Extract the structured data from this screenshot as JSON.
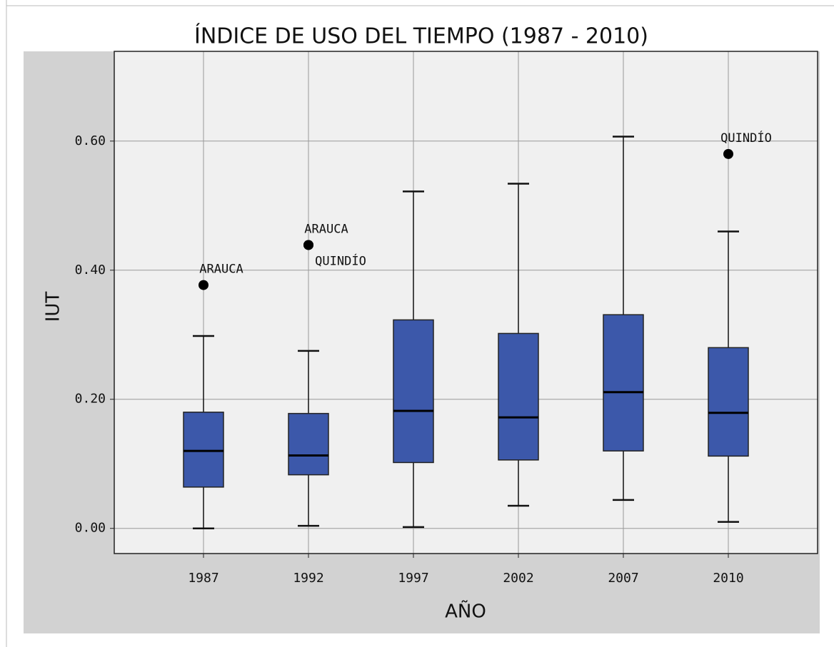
{
  "chart_data": {
    "type": "box",
    "title": "ÍNDICE DE USO DEL TIEMPO (1987 - 2010)",
    "x_label": "AÑO",
    "y_label": "IUT",
    "categories": [
      "1987",
      "1992",
      "1997",
      "2002",
      "2007",
      "2010"
    ],
    "color": "#3c58aa",
    "boxes": [
      {
        "low": 0.0,
        "q1": 0.064,
        "median": 0.12,
        "q3": 0.18,
        "high": 0.298,
        "outliers": [
          {
            "value": 0.377,
            "label": "ARAUCA"
          }
        ]
      },
      {
        "low": 0.004,
        "q1": 0.083,
        "median": 0.113,
        "q3": 0.178,
        "high": 0.275,
        "outliers": [
          {
            "value": 0.439,
            "label": "ARAUCA"
          },
          {
            "value": 0.439,
            "label": "QUINDÍO"
          }
        ]
      },
      {
        "low": 0.002,
        "q1": 0.102,
        "median": 0.182,
        "q3": 0.323,
        "high": 0.522,
        "outliers": []
      },
      {
        "low": 0.035,
        "q1": 0.106,
        "median": 0.172,
        "q3": 0.302,
        "high": 0.534,
        "outliers": []
      },
      {
        "low": 0.044,
        "q1": 0.12,
        "median": 0.211,
        "q3": 0.331,
        "high": 0.607,
        "outliers": []
      },
      {
        "low": 0.01,
        "q1": 0.112,
        "median": 0.179,
        "q3": 0.28,
        "high": 0.46,
        "outliers": [
          {
            "value": 0.58,
            "label": "QUINDÍO"
          }
        ]
      }
    ],
    "ylim": [
      -0.039,
      0.739
    ],
    "yticks": [
      {
        "value": 0,
        "label": "0.00"
      },
      {
        "value": 0.2,
        "label": "0.20"
      },
      {
        "value": 0.4,
        "label": "0.40"
      },
      {
        "value": 0.6,
        "label": "0.60"
      }
    ],
    "grid": true
  }
}
